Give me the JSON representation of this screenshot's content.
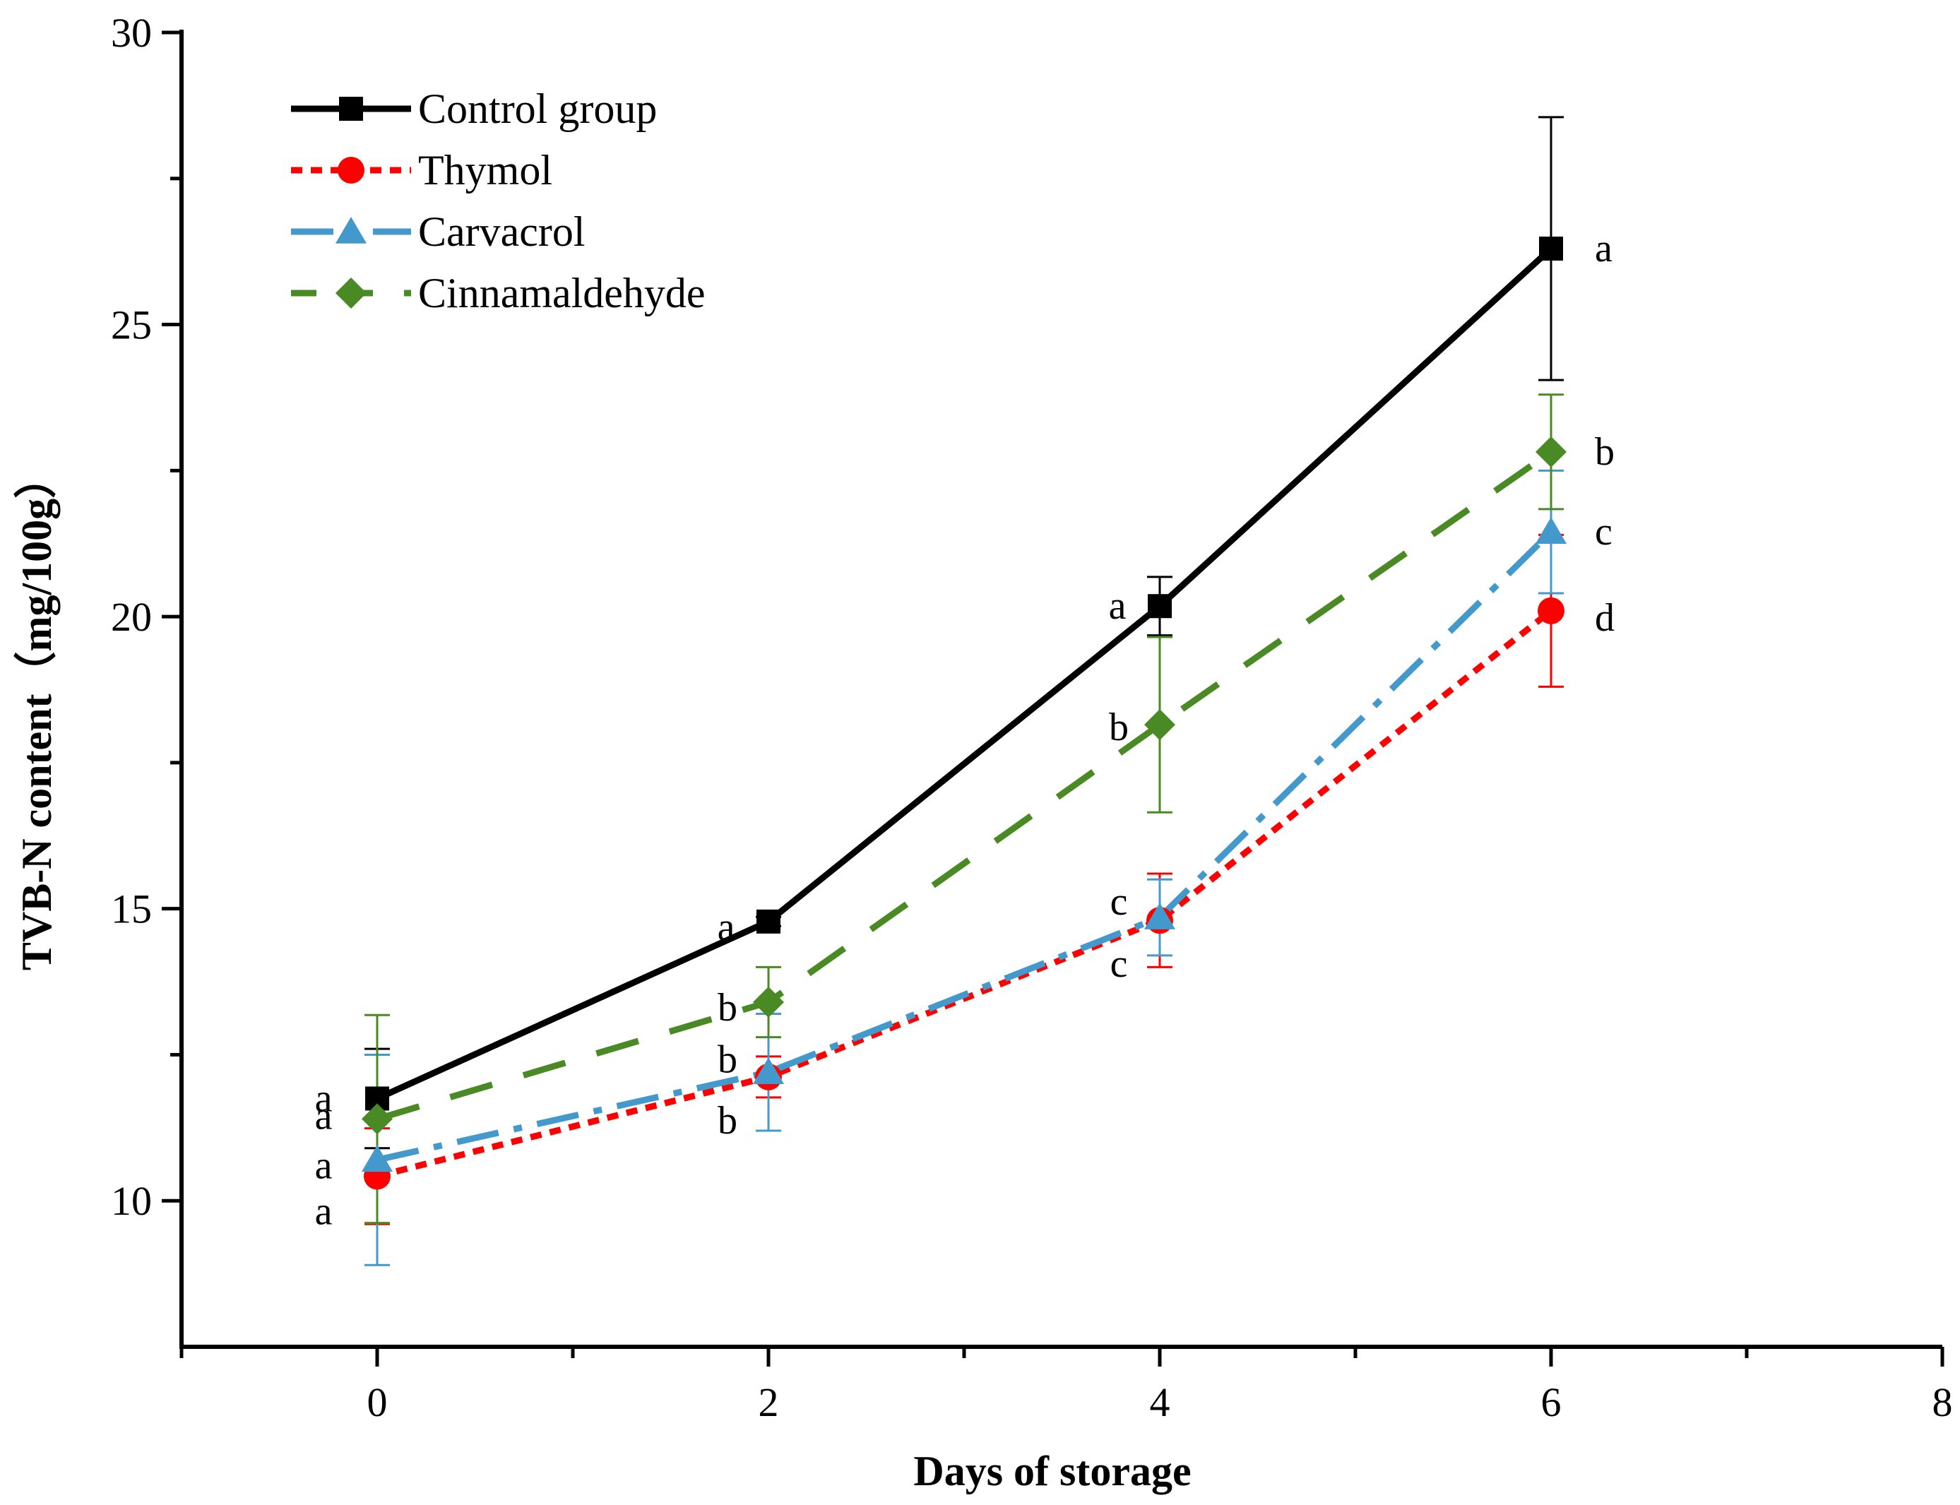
{
  "chart_data": {
    "type": "line",
    "title": "",
    "xlabel": "Days of storage",
    "ylabel": "TVB-N content（mg/100g）",
    "xlim": [
      -1,
      8
    ],
    "ylim": [
      7.5,
      30
    ],
    "x_ticks": [
      0,
      2,
      4,
      6,
      8
    ],
    "y_ticks": [
      10,
      15,
      20,
      25,
      30
    ],
    "x_tick_labels": [
      "0",
      "2",
      "4",
      "6",
      "8"
    ],
    "y_tick_labels": [
      "10",
      "15",
      "20",
      "25",
      "30"
    ],
    "legend_position": "top-left",
    "x": [
      0,
      2,
      4,
      6
    ],
    "series": [
      {
        "name": "Control group",
        "color": "#000000",
        "marker": "square",
        "line_style": "solid",
        "values": [
          11.75,
          14.78,
          20.18,
          26.3
        ],
        "errors": [
          0.85,
          0.08,
          0.5,
          2.25
        ],
        "letters": [
          "a",
          "a",
          "a",
          "a"
        ]
      },
      {
        "name": "Thymol",
        "color": "#ff0000",
        "marker": "circle",
        "line_style": "dotted",
        "values": [
          10.42,
          12.12,
          14.8,
          20.1
        ],
        "errors": [
          0.82,
          0.35,
          0.8,
          1.3
        ],
        "letters": [
          "a",
          "b",
          "c",
          "d"
        ]
      },
      {
        "name": "Carvacrol",
        "color": "#4499cc",
        "marker": "triangle",
        "line_style": "dashdot",
        "values": [
          10.7,
          12.2,
          14.85,
          21.45
        ],
        "errors": [
          1.8,
          1.0,
          0.65,
          1.05
        ],
        "letters": [
          "a",
          "b",
          "c",
          "c"
        ]
      },
      {
        "name": "Cinnamaldehyde",
        "color": "#4a8a25",
        "marker": "diamond",
        "line_style": "dashed",
        "values": [
          11.4,
          13.4,
          18.15,
          22.82
        ],
        "errors": [
          1.78,
          0.6,
          1.5,
          0.98
        ],
        "letters": [
          "a",
          "b",
          "b",
          "b"
        ]
      }
    ]
  }
}
